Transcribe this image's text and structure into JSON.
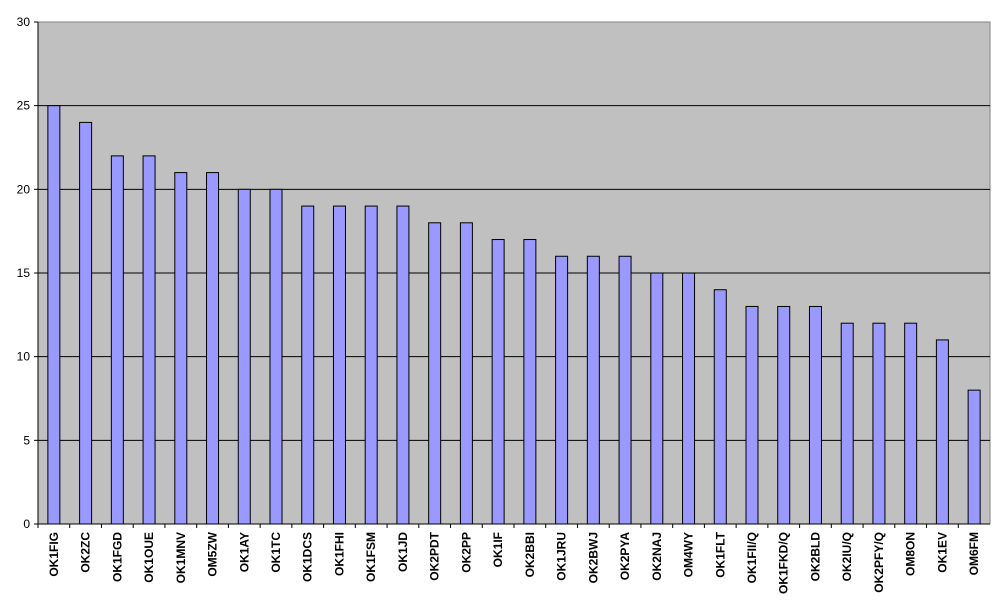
{
  "chart_data": {
    "type": "bar",
    "categories": [
      "OK1FIG",
      "OK2ZC",
      "OK1FGD",
      "OK1OUE",
      "OK1MNV",
      "OM5ZW",
      "OK1AY",
      "OK1TC",
      "OK1DCS",
      "OK1FHI",
      "OK1FSM",
      "OK1JD",
      "OK2PDT",
      "OK2PP",
      "OK1IF",
      "OK2BBI",
      "OK1JRU",
      "OK2BWJ",
      "OK2PYA",
      "OK2NAJ",
      "OM4WY",
      "OK1FLT",
      "OK1FII/Q",
      "OK1FKD/Q",
      "OK2BLD",
      "OK2IU/Q",
      "OK2PFY/Q",
      "OM8ON",
      "OK1EV",
      "OM6FM"
    ],
    "values": [
      25,
      24,
      22,
      22,
      21,
      21,
      20,
      20,
      19,
      19,
      19,
      19,
      18,
      18,
      17,
      17,
      16,
      16,
      16,
      15,
      15,
      14,
      13,
      13,
      13,
      12,
      12,
      12,
      11,
      8
    ],
    "color": "#9999ff",
    "background": "#c0c0c0",
    "ylim": [
      0,
      30
    ],
    "yticks": [
      0,
      5,
      10,
      15,
      20,
      25,
      30
    ],
    "grid": true
  }
}
